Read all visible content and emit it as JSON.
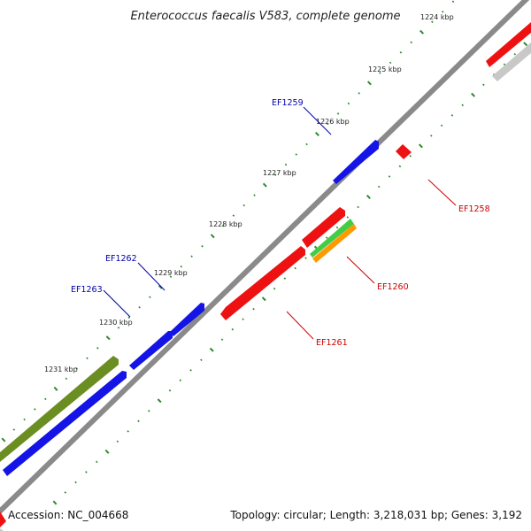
{
  "title": "Enterococcus faecalis V583, complete genome",
  "footer": {
    "accession": "Accession: NC_004668",
    "summary": "Topology: circular; Length: 3,218,031 bp; Genes: 3,192"
  },
  "colors": {
    "backbone": "#8a8a8a",
    "ticks": "#2e8b2e",
    "forward_gene": "#1414e6",
    "reverse_gene": "#ee1111",
    "rna_gene": "#6b8e23",
    "pseudo_gene": "#c8c8c8",
    "green_gene": "#44cc44",
    "orange_gene": "#ff9900",
    "forward_label": "#0000aa",
    "reverse_label": "#cc0000"
  },
  "kbp_labels": [
    "1224 kbp",
    "1225 kbp",
    "1226 kbp",
    "1227 kbp",
    "1228 kbp",
    "1229 kbp",
    "1230 kbp",
    "1231 kbp"
  ],
  "gene_labels": [
    {
      "id": "EF1259",
      "strand": "forward"
    },
    {
      "id": "EF1258",
      "strand": "reverse"
    },
    {
      "id": "EF1262",
      "strand": "forward"
    },
    {
      "id": "EF1260",
      "strand": "reverse"
    },
    {
      "id": "EF1263",
      "strand": "forward"
    },
    {
      "id": "EF1261",
      "strand": "reverse"
    }
  ]
}
